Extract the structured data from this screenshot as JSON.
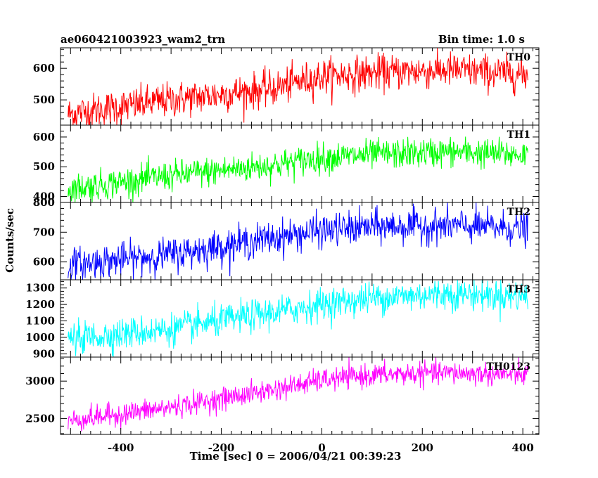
{
  "header": {
    "left": "ae060421003923_wam2_trn",
    "right": "Bin time: 1.0 s"
  },
  "chart_data": {
    "type": "line",
    "title": "",
    "xlabel": "Time [sec] 0 = 2006/04/21 00:39:23",
    "ylabel": "Counts/sec",
    "xlim": [
      -520,
      432
    ],
    "x_ticks": [
      -400,
      -200,
      0,
      200,
      400
    ],
    "x_range": [
      -505,
      410
    ],
    "series": [
      {
        "name": "TH0",
        "color": "#ff0000",
        "ylim": [
          420,
          665
        ],
        "y_ticks": [
          500,
          600
        ],
        "anchors": [
          [
            -505,
            455
          ],
          [
            -300,
            500
          ],
          [
            -100,
            535
          ],
          [
            0,
            575
          ],
          [
            100,
            585
          ],
          [
            250,
            595
          ],
          [
            410,
            580
          ]
        ],
        "noise": 28
      },
      {
        "name": "TH1",
        "color": "#00ff00",
        "ylim": [
          380,
          640
        ],
        "y_ticks": [
          400,
          500,
          600
        ],
        "anchors": [
          [
            -505,
            425
          ],
          [
            -300,
            470
          ],
          [
            -100,
            505
          ],
          [
            0,
            530
          ],
          [
            100,
            540
          ],
          [
            250,
            550
          ],
          [
            410,
            540
          ]
        ],
        "noise": 25
      },
      {
        "name": "TH2",
        "color": "#0000ff",
        "ylim": [
          540,
          800
        ],
        "y_ticks": [
          600,
          700,
          800
        ],
        "anchors": [
          [
            -505,
            590
          ],
          [
            -300,
            625
          ],
          [
            -100,
            680
          ],
          [
            0,
            705
          ],
          [
            100,
            718
          ],
          [
            250,
            722
          ],
          [
            410,
            712
          ]
        ],
        "noise": 28
      },
      {
        "name": "TH3",
        "color": "#00ffff",
        "ylim": [
          880,
          1350
        ],
        "y_ticks": [
          900,
          1000,
          1100,
          1200,
          1300
        ],
        "anchors": [
          [
            -505,
            990
          ],
          [
            -300,
            1050
          ],
          [
            -100,
            1150
          ],
          [
            0,
            1200
          ],
          [
            100,
            1240
          ],
          [
            250,
            1265
          ],
          [
            410,
            1250
          ]
        ],
        "noise": 48
      },
      {
        "name": "TH0123",
        "color": "#ff00ff",
        "ylim": [
          2290,
          3320
        ],
        "y_ticks": [
          2500,
          3000
        ],
        "anchors": [
          [
            -505,
            2470
          ],
          [
            -300,
            2650
          ],
          [
            -100,
            2880
          ],
          [
            0,
            3010
          ],
          [
            100,
            3080
          ],
          [
            250,
            3110
          ],
          [
            410,
            3080
          ]
        ],
        "noise": 75
      }
    ]
  }
}
